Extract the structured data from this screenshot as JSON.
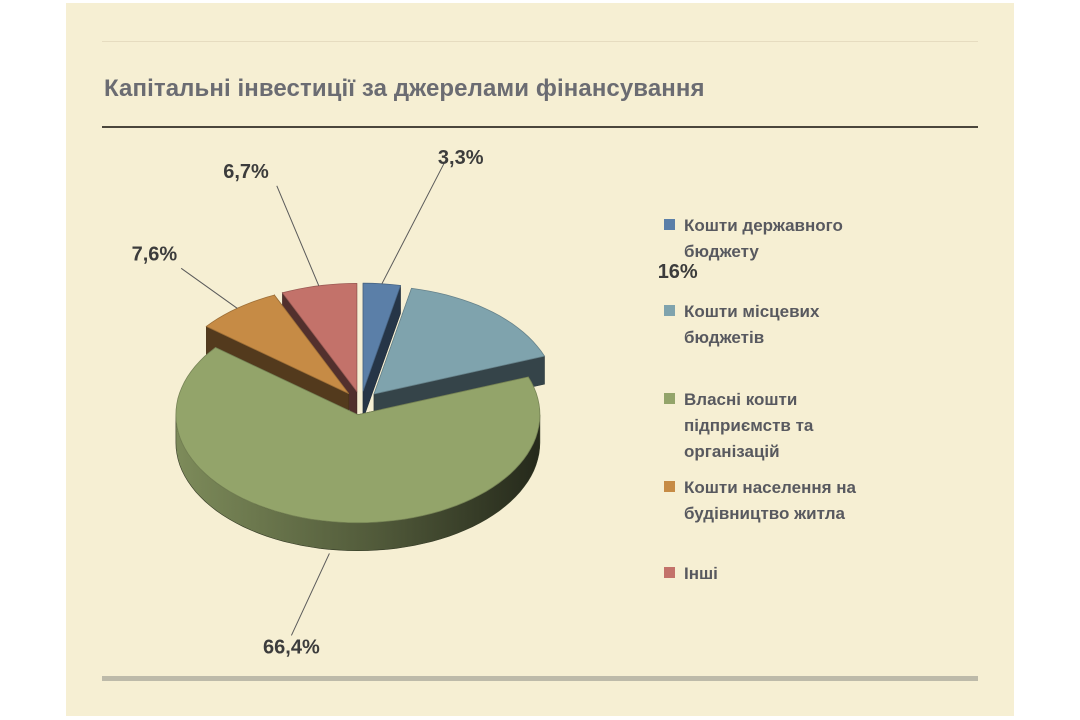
{
  "slide": {
    "title": "Капітальні інвестиції за джерелами фінансування"
  },
  "chart_data": {
    "type": "pie",
    "title": "",
    "categories": [
      "Кошти державного бюджету",
      "Кошти місцевих бюджетів",
      "Власні кошти підприємств та організацій",
      "Кошти населення на будівництво житла",
      "Інші"
    ],
    "values": [
      3.3,
      16,
      66.4,
      7.6,
      6.7
    ],
    "data_labels": [
      "3,3%",
      "16%",
      "66,4%",
      "7,6%",
      "6,7%"
    ],
    "legend_labels": [
      "Кошти державного\nбюджету",
      "Кошти місцевих\nбюджетів",
      "Власні кошти\nпідприємств та\nорганізацій",
      "Кошти населення на\nбудівництво житла",
      "Інші"
    ],
    "colors": [
      "#5b7fa8",
      "#7fa3ad",
      "#93a46a",
      "#c68b45",
      "#c3726a"
    ],
    "style": "3d-exploded",
    "legend_position": "right"
  }
}
